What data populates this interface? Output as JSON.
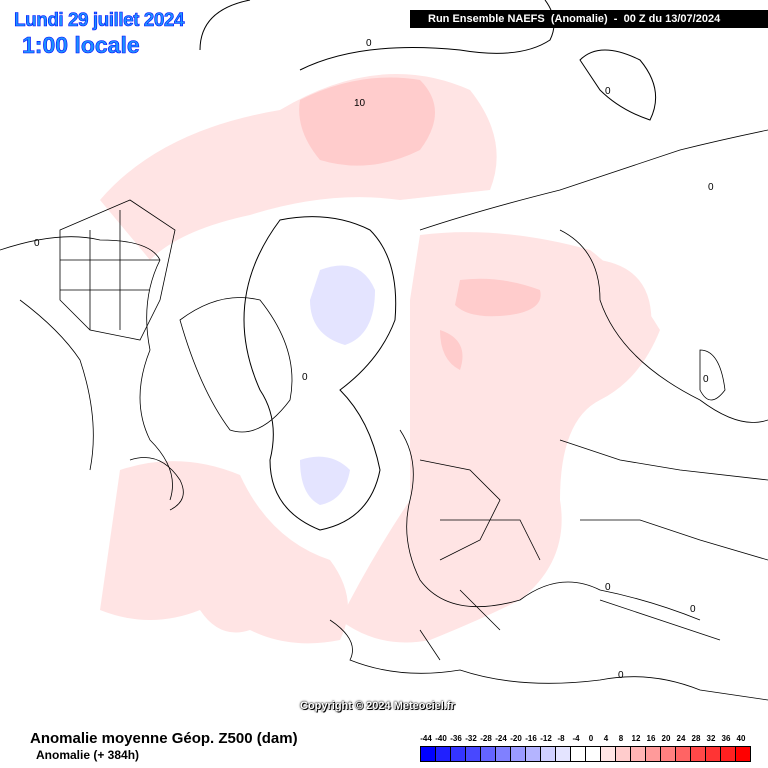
{
  "header": {
    "date": "Lundi 29 juillet 2024",
    "time": "1:00 locale",
    "run": "Run Ensemble NAEFS  (Anomalie)  -  00 Z du 13/07/2024"
  },
  "footer": {
    "title": "Anomalie moyenne Géop. Z500 (dam)",
    "subtitle": "Anomalie (+ 384h)",
    "copyright": "Copyright © 2024 Meteociel.fr"
  },
  "contour_labels": [
    "0",
    "10"
  ],
  "colorbar": {
    "labels": [
      "-44",
      "-40",
      "-36",
      "-32",
      "-28",
      "-24",
      "-20",
      "-16",
      "-12",
      "-8",
      "-4",
      "0",
      "4",
      "8",
      "12",
      "16",
      "20",
      "24",
      "28",
      "32",
      "36",
      "40"
    ],
    "colors": [
      "#0000ff",
      "#2020ff",
      "#3434ff",
      "#4848ff",
      "#6464ff",
      "#8080ff",
      "#9a9aff",
      "#b4b4ff",
      "#d0d0ff",
      "#e4e4ff",
      "#ffffff",
      "#ffffff",
      "#ffe4e4",
      "#ffcccc",
      "#ffb4b4",
      "#ff9a9a",
      "#ff8080",
      "#ff6464",
      "#ff4848",
      "#ff3434",
      "#ff2020",
      "#ff0000"
    ]
  },
  "colors": {
    "light_pink": "#ffe4e4",
    "pink": "#ffcccc",
    "light_blue": "#e4e4ff"
  }
}
